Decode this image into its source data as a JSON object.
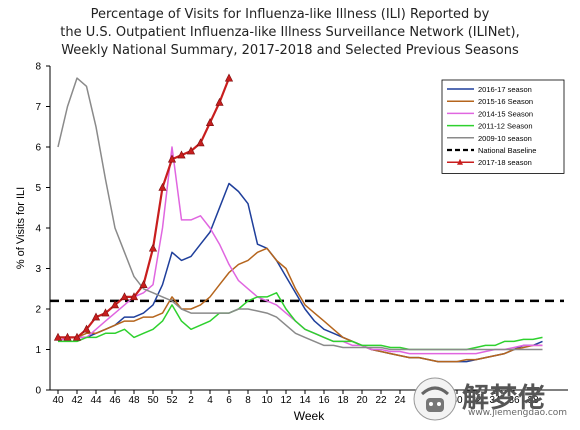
{
  "title_lines": [
    "Percentage of Visits for Influenza-like Illness (ILI) Reported by",
    "the U.S. Outpatient Influenza-like Illness Surveillance Network (ILINet),",
    "Weekly National Summary, 2017-2018 and Selected Previous Seasons"
  ],
  "watermark": {
    "text": "解梦佬",
    "url": "www.jiemengdao.com"
  },
  "chart_data": {
    "type": "line",
    "xlabel": "Week",
    "ylabel": "% of Visits for ILI",
    "ylim": [
      0,
      8
    ],
    "yticks": [
      0,
      1,
      2,
      3,
      4,
      5,
      6,
      7,
      8
    ],
    "xticks": [
      "40",
      "42",
      "44",
      "46",
      "48",
      "50",
      "52",
      "2",
      "4",
      "6",
      "8",
      "10",
      "12",
      "14",
      "16",
      "18",
      "20",
      "22",
      "24",
      "26",
      "28",
      "30",
      "32",
      "34",
      "36",
      "38"
    ],
    "x_index_range": [
      0,
      51.5
    ],
    "legend_position": "top-right",
    "grid": false,
    "baseline": {
      "name": "National Baseline",
      "value": 2.2
    },
    "series": [
      {
        "name": "2016-17 season",
        "color": "#1f3f9b",
        "values": [
          1.3,
          1.3,
          1.3,
          1.3,
          1.4,
          1.5,
          1.6,
          1.8,
          1.8,
          1.9,
          2.1,
          2.6,
          3.4,
          3.2,
          3.3,
          3.6,
          3.9,
          4.5,
          5.1,
          4.9,
          4.6,
          3.6,
          3.5,
          3.2,
          2.8,
          2.4,
          2.0,
          1.7,
          1.5,
          1.4,
          1.3,
          1.2,
          1.1,
          1.0,
          0.95,
          0.9,
          0.85,
          0.8,
          0.8,
          0.75,
          0.7,
          0.7,
          0.7,
          0.7,
          0.75,
          0.8,
          0.85,
          0.9,
          1.0,
          1.1,
          1.1,
          1.2
        ]
      },
      {
        "name": "2015-16 Season",
        "color": "#b5651d",
        "values": [
          1.3,
          1.3,
          1.3,
          1.4,
          1.4,
          1.5,
          1.6,
          1.7,
          1.7,
          1.8,
          1.8,
          1.9,
          2.3,
          2.0,
          2.0,
          2.1,
          2.3,
          2.6,
          2.9,
          3.1,
          3.2,
          3.4,
          3.5,
          3.2,
          3.0,
          2.5,
          2.1,
          1.9,
          1.7,
          1.5,
          1.3,
          1.2,
          1.1,
          1.0,
          0.95,
          0.9,
          0.85,
          0.8,
          0.8,
          0.75,
          0.7,
          0.7,
          0.7,
          0.75,
          0.75,
          0.8,
          0.85,
          0.9,
          1.0,
          1.05,
          1.1,
          1.1
        ]
      },
      {
        "name": "2014-15 Season",
        "color": "#e066e0",
        "values": [
          1.2,
          1.3,
          1.3,
          1.3,
          1.5,
          1.7,
          1.9,
          2.1,
          2.3,
          2.4,
          2.6,
          4.0,
          6.0,
          4.2,
          4.2,
          4.3,
          4.0,
          3.6,
          3.1,
          2.7,
          2.5,
          2.3,
          2.2,
          2.1,
          1.9,
          1.7,
          1.5,
          1.4,
          1.3,
          1.2,
          1.2,
          1.1,
          1.1,
          1.0,
          1.0,
          0.95,
          0.95,
          0.9,
          0.9,
          0.9,
          0.9,
          0.9,
          0.9,
          0.9,
          0.9,
          0.95,
          1.0,
          1.0,
          1.05,
          1.1,
          1.1,
          1.1
        ]
      },
      {
        "name": "2011-12 Season",
        "color": "#2ed12e",
        "values": [
          1.2,
          1.2,
          1.2,
          1.3,
          1.3,
          1.4,
          1.4,
          1.5,
          1.3,
          1.4,
          1.5,
          1.7,
          2.1,
          1.7,
          1.5,
          1.6,
          1.7,
          1.9,
          1.9,
          2.0,
          2.2,
          2.3,
          2.3,
          2.4,
          2.0,
          1.7,
          1.5,
          1.4,
          1.3,
          1.2,
          1.2,
          1.2,
          1.1,
          1.1,
          1.1,
          1.05,
          1.05,
          1.0,
          1.0,
          1.0,
          1.0,
          1.0,
          1.0,
          1.0,
          1.05,
          1.1,
          1.1,
          1.2,
          1.2,
          1.25,
          1.25,
          1.3
        ]
      },
      {
        "name": "2009-10 season",
        "color": "#8a8a8a",
        "values": [
          6.0,
          7.0,
          7.7,
          7.5,
          6.5,
          5.2,
          4.0,
          3.4,
          2.8,
          2.5,
          2.4,
          2.3,
          2.2,
          2.0,
          1.9,
          1.9,
          1.9,
          1.9,
          1.9,
          2.0,
          2.0,
          1.95,
          1.9,
          1.8,
          1.6,
          1.4,
          1.3,
          1.2,
          1.1,
          1.1,
          1.05,
          1.05,
          1.05,
          1.05,
          1.05,
          1.0,
          1.0,
          1.0,
          1.0,
          1.0,
          1.0,
          1.0,
          1.0,
          1.0,
          1.0,
          1.0,
          1.0,
          1.0,
          1.0,
          1.0,
          1.0,
          1.0
        ]
      },
      {
        "name": "2017-18 season",
        "color": "#c81e1e",
        "markers": true,
        "values": [
          1.3,
          1.3,
          1.3,
          1.5,
          1.8,
          1.9,
          2.1,
          2.3,
          2.3,
          2.6,
          3.5,
          5.0,
          5.7,
          5.8,
          5.9,
          6.1,
          6.6,
          7.1,
          7.7
        ]
      }
    ]
  }
}
